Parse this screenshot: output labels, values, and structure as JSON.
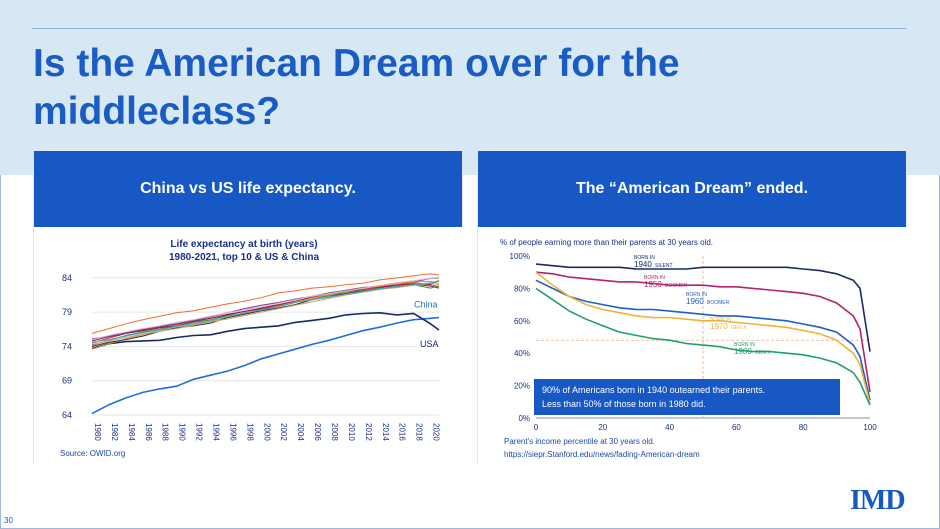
{
  "slide": {
    "title": "Is the American Dream over for the middleclass?",
    "page_number": "30",
    "logo_text": "IMD"
  },
  "left_panel": {
    "header": "China vs US life expectancy.",
    "source": "Source: OWID.org"
  },
  "right_panel": {
    "header": "The “American Dream” ended.",
    "xlabel": "Parent's income percentile at 30 years old.",
    "url": "https://siepr.Stanford.edu/news/fading-American-dream"
  },
  "colors": {
    "accent": "#1758c4",
    "band": "#d7e8f5",
    "china": "#1f6fd6",
    "usa": "#1a2a66"
  },
  "chart_data": [
    {
      "type": "line",
      "title": "Life expectancy at birth (years)",
      "subtitle": "1980-2021, top 10 & US & China",
      "x": [
        1980,
        1982,
        1984,
        1986,
        1988,
        1990,
        1992,
        1994,
        1996,
        1998,
        2000,
        2002,
        2004,
        2006,
        2008,
        2010,
        2012,
        2014,
        2016,
        2018,
        2020,
        2021
      ],
      "xticks": [
        "1980",
        "1982",
        "1984",
        "1986",
        "1988",
        "1990",
        "1992",
        "1994",
        "1996",
        "1998",
        "2000",
        "2002",
        "2004",
        "2006",
        "2008",
        "2010",
        "2012",
        "2014",
        "2016",
        "2018",
        "2020"
      ],
      "yticks": [
        "84",
        "79",
        "74",
        "69",
        "64"
      ],
      "ylim": [
        64,
        85
      ],
      "series": [
        {
          "name": "China",
          "label": "China",
          "color": "#1f6fd6",
          "width": 1.6,
          "values": [
            64.2,
            65.5,
            66.5,
            67.3,
            67.8,
            68.2,
            69.2,
            69.8,
            70.4,
            71.2,
            72.2,
            72.9,
            73.6,
            74.3,
            74.9,
            75.6,
            76.3,
            76.8,
            77.4,
            77.9,
            78.1,
            78.2
          ]
        },
        {
          "name": "USA",
          "label": "USA",
          "color": "#1a2a66",
          "width": 1.6,
          "values": [
            73.7,
            74.4,
            74.7,
            74.8,
            74.9,
            75.3,
            75.6,
            75.7,
            76.2,
            76.6,
            76.8,
            77.0,
            77.5,
            77.8,
            78.1,
            78.6,
            78.8,
            78.9,
            78.6,
            78.8,
            77.3,
            76.4
          ]
        },
        {
          "name": "top10-a",
          "color": "#d9232e",
          "width": 1,
          "values": [
            74.5,
            75.2,
            75.9,
            76.4,
            76.8,
            77.2,
            77.7,
            78.1,
            78.7,
            79.1,
            79.6,
            80.1,
            80.6,
            81.2,
            81.6,
            82.0,
            82.3,
            82.7,
            83.0,
            83.3,
            83.0,
            82.7
          ]
        },
        {
          "name": "top10-b",
          "color": "#f26b2d",
          "width": 1,
          "values": [
            75.9,
            76.6,
            77.3,
            77.9,
            78.4,
            78.9,
            79.2,
            79.7,
            80.2,
            80.6,
            81.1,
            81.8,
            82.1,
            82.5,
            82.7,
            83.0,
            83.2,
            83.7,
            84.0,
            84.3,
            84.6,
            84.4
          ]
        },
        {
          "name": "top10-c",
          "color": "#8b1c56",
          "width": 1,
          "values": [
            74.8,
            75.4,
            75.9,
            76.3,
            76.7,
            77.0,
            77.6,
            78.1,
            78.6,
            79.1,
            79.5,
            80.0,
            80.6,
            81.0,
            81.4,
            81.7,
            82.1,
            82.6,
            82.9,
            83.1,
            82.8,
            82.5
          ]
        },
        {
          "name": "top10-d",
          "color": "#3a8f3a",
          "width": 1,
          "values": [
            74.2,
            74.9,
            75.6,
            76.1,
            76.5,
            77.0,
            77.5,
            77.9,
            78.5,
            78.8,
            79.4,
            79.8,
            80.4,
            81.0,
            81.4,
            81.9,
            82.2,
            82.5,
            82.7,
            83.0,
            82.5,
            82.8
          ]
        },
        {
          "name": "top10-e",
          "color": "#6a3fa0",
          "width": 1,
          "values": [
            75.1,
            75.5,
            76.0,
            76.5,
            76.9,
            77.3,
            77.8,
            78.3,
            78.9,
            79.5,
            80.0,
            80.4,
            80.9,
            81.3,
            81.8,
            82.2,
            82.6,
            82.8,
            83.2,
            83.4,
            83.9,
            84.0
          ]
        },
        {
          "name": "top10-f",
          "color": "#d99a1e",
          "width": 1,
          "values": [
            73.6,
            74.4,
            75.1,
            75.7,
            76.2,
            76.7,
            77.2,
            77.7,
            78.3,
            78.8,
            79.3,
            79.8,
            80.5,
            81.0,
            81.6,
            82.0,
            82.5,
            82.8,
            83.2,
            83.4,
            83.5,
            83.2
          ]
        },
        {
          "name": "top10-g",
          "color": "#333333",
          "width": 1,
          "values": [
            74.0,
            74.6,
            75.0,
            75.5,
            76.2,
            76.7,
            77.0,
            77.4,
            78.2,
            78.7,
            79.2,
            79.6,
            80.1,
            80.8,
            81.2,
            81.7,
            82.0,
            82.4,
            82.6,
            83.0,
            83.1,
            83.6
          ]
        },
        {
          "name": "top10-h",
          "color": "#c7a07a",
          "width": 1,
          "values": [
            74.3,
            74.8,
            75.3,
            75.8,
            76.2,
            76.6,
            77.1,
            77.6,
            78.0,
            78.5,
            79.0,
            79.5,
            80.0,
            80.5,
            81.0,
            81.5,
            81.9,
            82.3,
            82.6,
            82.9,
            83.2,
            83.0
          ]
        },
        {
          "name": "top10-i",
          "color": "#4fa8c8",
          "width": 1,
          "values": [
            74.6,
            75.0,
            75.5,
            76.0,
            76.4,
            76.9,
            77.3,
            77.8,
            78.3,
            78.9,
            79.3,
            79.9,
            80.4,
            80.8,
            81.2,
            81.6,
            82.0,
            82.4,
            82.8,
            83.0,
            83.3,
            83.5
          ]
        },
        {
          "name": "top10-j",
          "color": "#e6a9c6",
          "width": 1,
          "values": [
            75.0,
            75.6,
            76.1,
            76.6,
            77.0,
            77.5,
            77.9,
            78.4,
            78.9,
            79.3,
            79.8,
            80.3,
            80.8,
            81.3,
            81.7,
            82.1,
            82.5,
            82.9,
            83.3,
            83.6,
            83.9,
            84.1
          ]
        }
      ]
    },
    {
      "type": "line",
      "title": "% of people earning more than their parents at 30 years old.",
      "xlabel": "Parent's income percentile at 30 years old.",
      "ylabel": "",
      "x": [
        0,
        5,
        10,
        15,
        20,
        25,
        30,
        35,
        40,
        45,
        50,
        55,
        60,
        65,
        70,
        75,
        80,
        85,
        90,
        95,
        97,
        100
      ],
      "xticks": [
        "0",
        "20",
        "40",
        "60",
        "80",
        "100"
      ],
      "xlim": [
        0,
        100
      ],
      "yticks": [
        "100%",
        "80%",
        "60%",
        "40%",
        "20%",
        "0%"
      ],
      "ylim": [
        0,
        100
      ],
      "reference_x": 50,
      "reference_y": 48,
      "series": [
        {
          "name": "1940",
          "tag": "SILENT",
          "born": "BORN IN",
          "color": "#1a2a66",
          "values": [
            95,
            94,
            93,
            93,
            93,
            93,
            92,
            92,
            92,
            92,
            93,
            93,
            93,
            93,
            93,
            93,
            92,
            91,
            89,
            85,
            80,
            41
          ]
        },
        {
          "name": "1950",
          "tag": "BOOMER",
          "born": "BORN IN",
          "color": "#b3226e",
          "values": [
            90,
            89,
            87,
            86,
            85,
            84,
            84,
            83,
            82,
            82,
            82,
            81,
            81,
            80,
            79,
            78,
            77,
            75,
            71,
            63,
            55,
            16
          ]
        },
        {
          "name": "1960",
          "tag": "BOOMER",
          "born": "BORN IN",
          "color": "#1f5fc4",
          "values": [
            85,
            80,
            75,
            72,
            70,
            68,
            67,
            67,
            66,
            65,
            64,
            63,
            63,
            62,
            61,
            60,
            58,
            56,
            53,
            45,
            38,
            11
          ]
        },
        {
          "name": "1970",
          "tag": "GEN X",
          "born": "BORN IN",
          "color": "#efb23a",
          "values": [
            90,
            82,
            75,
            70,
            67,
            65,
            63,
            62,
            62,
            61,
            60,
            60,
            59,
            58,
            57,
            56,
            54,
            52,
            48,
            40,
            33,
            9
          ]
        },
        {
          "name": "1980",
          "tag": "GEN X",
          "born": "BORN IN",
          "color": "#1fa06b",
          "values": [
            80,
            73,
            66,
            61,
            57,
            53,
            51,
            49,
            48,
            46,
            45,
            44,
            42,
            41,
            41,
            40,
            39,
            37,
            34,
            28,
            22,
            8
          ]
        }
      ],
      "annotation": [
        "90% of Americans born in 1940 outearned their parents.",
        "Less than 50% of those born in 1980 did."
      ]
    }
  ]
}
